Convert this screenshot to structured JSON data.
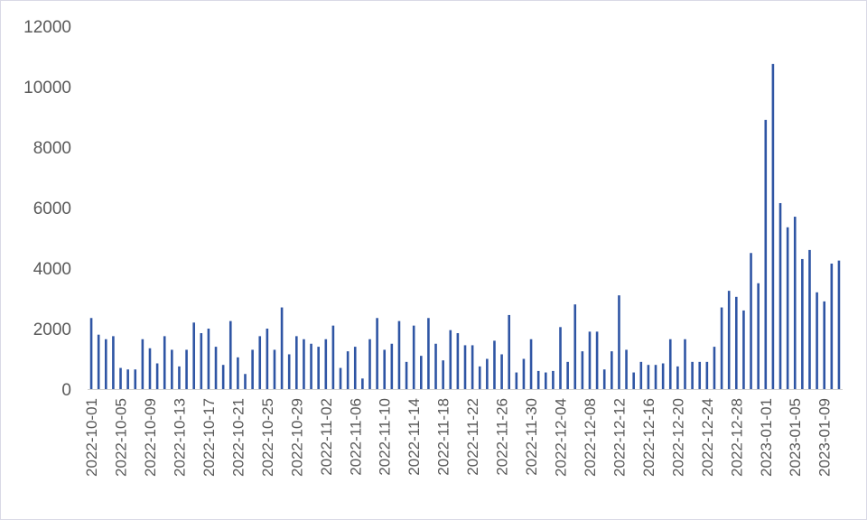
{
  "chart_data": {
    "type": "bar",
    "title": "",
    "xlabel": "",
    "ylabel": "",
    "ylim": [
      0,
      12000
    ],
    "yticks": [
      0,
      2000,
      4000,
      6000,
      8000,
      10000,
      12000
    ],
    "grid": false,
    "legend": "none",
    "bar_color": "#2f55a4",
    "start_date": "2022-10-01",
    "x_tick_labels": [
      "2022-10-01",
      "2022-10-05",
      "2022-10-09",
      "2022-10-13",
      "2022-10-17",
      "2022-10-21",
      "2022-10-25",
      "2022-10-29",
      "2022-11-02",
      "2022-11-06",
      "2022-11-10",
      "2022-11-14",
      "2022-11-18",
      "2022-11-22",
      "2022-11-26",
      "2022-11-30",
      "2022-12-04",
      "2022-12-08",
      "2022-12-12",
      "2022-12-16",
      "2022-12-20",
      "2022-12-24",
      "2022-12-28",
      "2023-01-01",
      "2023-01-05",
      "2023-01-09"
    ],
    "categories": [
      "2022-10-01",
      "2022-10-02",
      "2022-10-03",
      "2022-10-04",
      "2022-10-05",
      "2022-10-06",
      "2022-10-07",
      "2022-10-08",
      "2022-10-09",
      "2022-10-10",
      "2022-10-11",
      "2022-10-12",
      "2022-10-13",
      "2022-10-14",
      "2022-10-15",
      "2022-10-16",
      "2022-10-17",
      "2022-10-18",
      "2022-10-19",
      "2022-10-20",
      "2022-10-21",
      "2022-10-22",
      "2022-10-23",
      "2022-10-24",
      "2022-10-25",
      "2022-10-26",
      "2022-10-27",
      "2022-10-28",
      "2022-10-29",
      "2022-10-30",
      "2022-10-31",
      "2022-11-01",
      "2022-11-02",
      "2022-11-03",
      "2022-11-04",
      "2022-11-05",
      "2022-11-06",
      "2022-11-07",
      "2022-11-08",
      "2022-11-09",
      "2022-11-10",
      "2022-11-11",
      "2022-11-12",
      "2022-11-13",
      "2022-11-14",
      "2022-11-15",
      "2022-11-16",
      "2022-11-17",
      "2022-11-18",
      "2022-11-19",
      "2022-11-20",
      "2022-11-21",
      "2022-11-22",
      "2022-11-23",
      "2022-11-24",
      "2022-11-25",
      "2022-11-26",
      "2022-11-27",
      "2022-11-28",
      "2022-11-29",
      "2022-11-30",
      "2022-12-01",
      "2022-12-02",
      "2022-12-03",
      "2022-12-04",
      "2022-12-05",
      "2022-12-06",
      "2022-12-07",
      "2022-12-08",
      "2022-12-09",
      "2022-12-10",
      "2022-12-11",
      "2022-12-12",
      "2022-12-13",
      "2022-12-14",
      "2022-12-15",
      "2022-12-16",
      "2022-12-17",
      "2022-12-18",
      "2022-12-19",
      "2022-12-20",
      "2022-12-21",
      "2022-12-22",
      "2022-12-23",
      "2022-12-24",
      "2022-12-25",
      "2022-12-26",
      "2022-12-27",
      "2022-12-28",
      "2022-12-29",
      "2022-12-30",
      "2022-12-31",
      "2023-01-01",
      "2023-01-02",
      "2023-01-03",
      "2023-01-04",
      "2023-01-05",
      "2023-01-06",
      "2023-01-07",
      "2023-01-08",
      "2023-01-09",
      "2023-01-10",
      "2023-01-11"
    ],
    "values": [
      2350,
      1800,
      1650,
      1750,
      700,
      650,
      650,
      1650,
      1350,
      850,
      1750,
      1300,
      750,
      1300,
      2200,
      1850,
      2000,
      1400,
      800,
      2250,
      1050,
      500,
      1300,
      1750,
      2000,
      1300,
      2700,
      1150,
      1750,
      1650,
      1500,
      1400,
      1650,
      2100,
      700,
      1250,
      1400,
      350,
      1650,
      2350,
      1300,
      1500,
      2250,
      900,
      2100,
      1100,
      2350,
      1500,
      950,
      1950,
      1850,
      1450,
      1450,
      750,
      1000,
      1600,
      1150,
      2450,
      550,
      1000,
      1650,
      600,
      550,
      600,
      2050,
      900,
      2800,
      1250,
      1900,
      1900,
      650,
      1250,
      3100,
      1300,
      550,
      900,
      800,
      800,
      850,
      1650,
      750,
      1650,
      900,
      900,
      900,
      1400,
      2700,
      3250,
      3050,
      2600,
      4500,
      3500,
      8900,
      10750,
      6150,
      5350,
      5700,
      4300,
      4600,
      3200,
      2900,
      4150,
      4250
    ]
  }
}
